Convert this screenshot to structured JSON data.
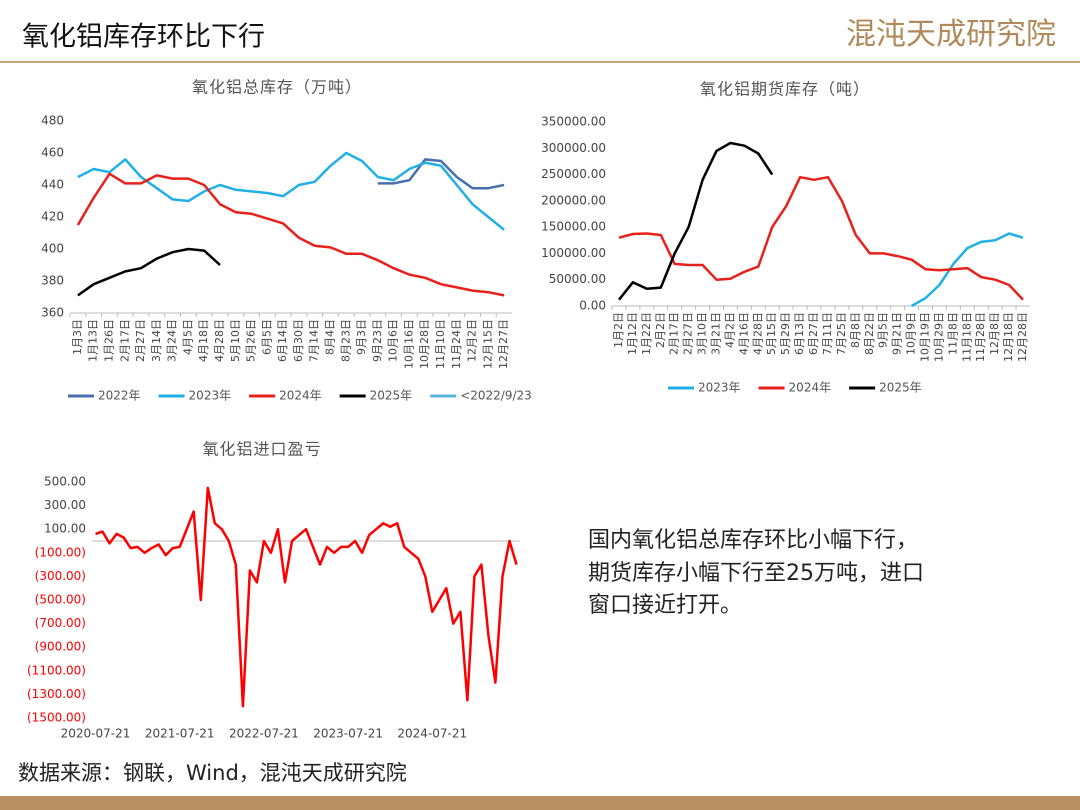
{
  "header": {
    "title": "氧化铝库存环比下行",
    "logo": "混沌天成研究院"
  },
  "chart_data": [
    {
      "type": "line",
      "title": "氧化铝总库存（万吨）",
      "categories": [
        "1月3日",
        "1月13日",
        "1月26日",
        "2月17日",
        "2月27日",
        "3月14日",
        "3月24日",
        "4月5日",
        "4月18日",
        "4月28日",
        "5月10日",
        "5月26日",
        "6月5日",
        "6月14日",
        "6月30日",
        "7月14日",
        "8月4日",
        "8月23日",
        "9月3日",
        "9月23日",
        "10月6日",
        "10月16日",
        "10月28日",
        "11月10日",
        "11月24日",
        "12月2日",
        "12月15日",
        "12月27日"
      ],
      "series": [
        {
          "name": "2022年",
          "color": "#4a6fae",
          "values": [
            null,
            null,
            null,
            null,
            null,
            null,
            null,
            null,
            null,
            null,
            null,
            null,
            null,
            null,
            null,
            null,
            null,
            null,
            null,
            441,
            441,
            443,
            456,
            455,
            445,
            438,
            438,
            440
          ]
        },
        {
          "name": "2023年",
          "color": "#21b0e6",
          "values": [
            445,
            450,
            448,
            456,
            445,
            438,
            431,
            430,
            436,
            440,
            437,
            436,
            435,
            433,
            440,
            442,
            452,
            460,
            455,
            445,
            443,
            450,
            454,
            452,
            440,
            428,
            420,
            412
          ]
        },
        {
          "name": "2024年",
          "color": "#e8211c",
          "values": [
            415,
            432,
            447,
            441,
            441,
            446,
            444,
            444,
            440,
            428,
            423,
            422,
            419,
            416,
            407,
            402,
            401,
            397,
            397,
            393,
            388,
            384,
            382,
            378,
            376,
            374,
            373,
            371
          ]
        },
        {
          "name": "2025年",
          "color": "#000000",
          "values": [
            371,
            378,
            382,
            386,
            388,
            394,
            398,
            400,
            399,
            390,
            null,
            null,
            null,
            null,
            null,
            null,
            null,
            null,
            null,
            null,
            null,
            null,
            null,
            null,
            null,
            null,
            null,
            null
          ]
        },
        {
          "name": "<2022/9/23",
          "color": "#5bb5e0",
          "values": [
            null,
            null,
            null,
            null,
            null,
            null,
            null,
            null,
            null,
            null,
            null,
            null,
            null,
            null,
            null,
            null,
            null,
            null,
            null,
            null,
            null,
            null,
            null,
            null,
            null,
            null,
            null,
            null
          ]
        }
      ],
      "ylim": [
        360,
        480
      ],
      "yticks": [
        360,
        380,
        400,
        420,
        440,
        460,
        480
      ],
      "legend": "bottom"
    },
    {
      "type": "line",
      "title": "氧化铝期货库存（吨）",
      "categories": [
        "1月2日",
        "1月12日",
        "1月22日",
        "2月2日",
        "2月17日",
        "2月27日",
        "3月10日",
        "3月21日",
        "4月2日",
        "4月16日",
        "4月28日",
        "5月15日",
        "5月29日",
        "6月13日",
        "6月27日",
        "7月11日",
        "7月25日",
        "8月8日",
        "8月22日",
        "9月5日",
        "9月21日",
        "10月9日",
        "10月19日",
        "10月29日",
        "11月8日",
        "11月18日",
        "11月28日",
        "12月8日",
        "12月18日",
        "12月28日"
      ],
      "series": [
        {
          "name": "2023年",
          "color": "#21b0e6",
          "values": [
            null,
            null,
            null,
            null,
            null,
            null,
            null,
            null,
            null,
            null,
            null,
            null,
            null,
            null,
            null,
            null,
            null,
            null,
            null,
            null,
            null,
            0,
            15000,
            40000,
            80000,
            110000,
            122000,
            125000,
            138000,
            130000
          ]
        },
        {
          "name": "2024年",
          "color": "#e8211c",
          "values": [
            130000,
            137000,
            138000,
            135000,
            80000,
            78000,
            78000,
            50000,
            52000,
            65000,
            75000,
            150000,
            190000,
            245000,
            240000,
            245000,
            200000,
            135000,
            100000,
            100000,
            95000,
            88000,
            70000,
            68000,
            70000,
            72000,
            55000,
            50000,
            40000,
            12000
          ]
        },
        {
          "name": "2025年",
          "color": "#000000",
          "values": [
            12000,
            45000,
            33000,
            35000,
            100000,
            150000,
            240000,
            295000,
            310000,
            305000,
            290000,
            250000,
            null,
            null,
            null,
            null,
            null,
            null,
            null,
            null,
            null,
            null,
            null,
            null,
            null,
            null,
            null,
            null,
            null,
            null
          ]
        }
      ],
      "ylim": [
        0,
        350000
      ],
      "yticks": [
        {
          "value": 0,
          "label": "0.00"
        },
        {
          "value": 50000,
          "label": "50000.00"
        },
        {
          "value": 100000,
          "label": "100000.00"
        },
        {
          "value": 150000,
          "label": "150000.00"
        },
        {
          "value": 200000,
          "label": "200000.00"
        },
        {
          "value": 250000,
          "label": "250000.00"
        },
        {
          "value": 300000,
          "label": "300000.00"
        },
        {
          "value": 350000,
          "label": "350000.00"
        }
      ],
      "legend": "bottom"
    },
    {
      "type": "line",
      "title": "氧化铝进口盈亏",
      "color": "#ff0000",
      "negative_tick_color": "#ff0000",
      "categories": [
        "2020-07-21",
        null,
        null,
        null,
        null,
        null,
        null,
        null,
        null,
        null,
        null,
        null,
        "2021-07-21",
        null,
        null,
        null,
        null,
        null,
        null,
        null,
        null,
        null,
        null,
        null,
        "2022-07-21",
        null,
        null,
        null,
        null,
        null,
        null,
        null,
        null,
        null,
        null,
        null,
        "2023-07-21",
        null,
        null,
        null,
        null,
        null,
        null,
        null,
        null,
        null,
        null,
        null,
        "2024-07-21",
        null,
        null,
        null,
        null,
        null,
        null,
        null,
        null,
        null,
        null,
        null,
        null
      ],
      "values": [
        60,
        80,
        -20,
        60,
        30,
        -60,
        -50,
        -100,
        -60,
        -30,
        -120,
        -60,
        -50,
        100,
        250,
        -500,
        450,
        150,
        100,
        0,
        -200,
        -1400,
        -250,
        -350,
        0,
        -100,
        100,
        -350,
        0,
        50,
        100,
        -50,
        -200,
        -50,
        -100,
        -50,
        -50,
        0,
        -100,
        50,
        100,
        150,
        120,
        150,
        -50,
        -100,
        -150,
        -300,
        -600,
        -500,
        -400,
        -700,
        -600,
        -1350,
        -300,
        -200,
        -800,
        -1200,
        -300,
        0,
        -200
      ],
      "ylim": [
        -1500,
        500
      ],
      "yticks": [
        {
          "value": 500,
          "label": "500.00"
        },
        {
          "value": 300,
          "label": "300.00"
        },
        {
          "value": 100,
          "label": "100.00"
        },
        {
          "value": -100,
          "label": "(100.00)"
        },
        {
          "value": -300,
          "label": "(300.00)"
        },
        {
          "value": -500,
          "label": "(500.00)"
        },
        {
          "value": -700,
          "label": "(700.00)"
        },
        {
          "value": -900,
          "label": "(900.00)"
        },
        {
          "value": -1100,
          "label": "(1100.00)"
        },
        {
          "value": -1300,
          "label": "(1300.00)"
        },
        {
          "value": -1500,
          "label": "(1500.00)"
        }
      ]
    }
  ],
  "note": {
    "lines": [
      "国内氧化铝总库存环比小幅下行，",
      "期货库存小幅下行至25万吨，进口",
      "窗口接近打开。"
    ]
  },
  "source": "数据来源：钢联，Wind，混沌天成研究院"
}
